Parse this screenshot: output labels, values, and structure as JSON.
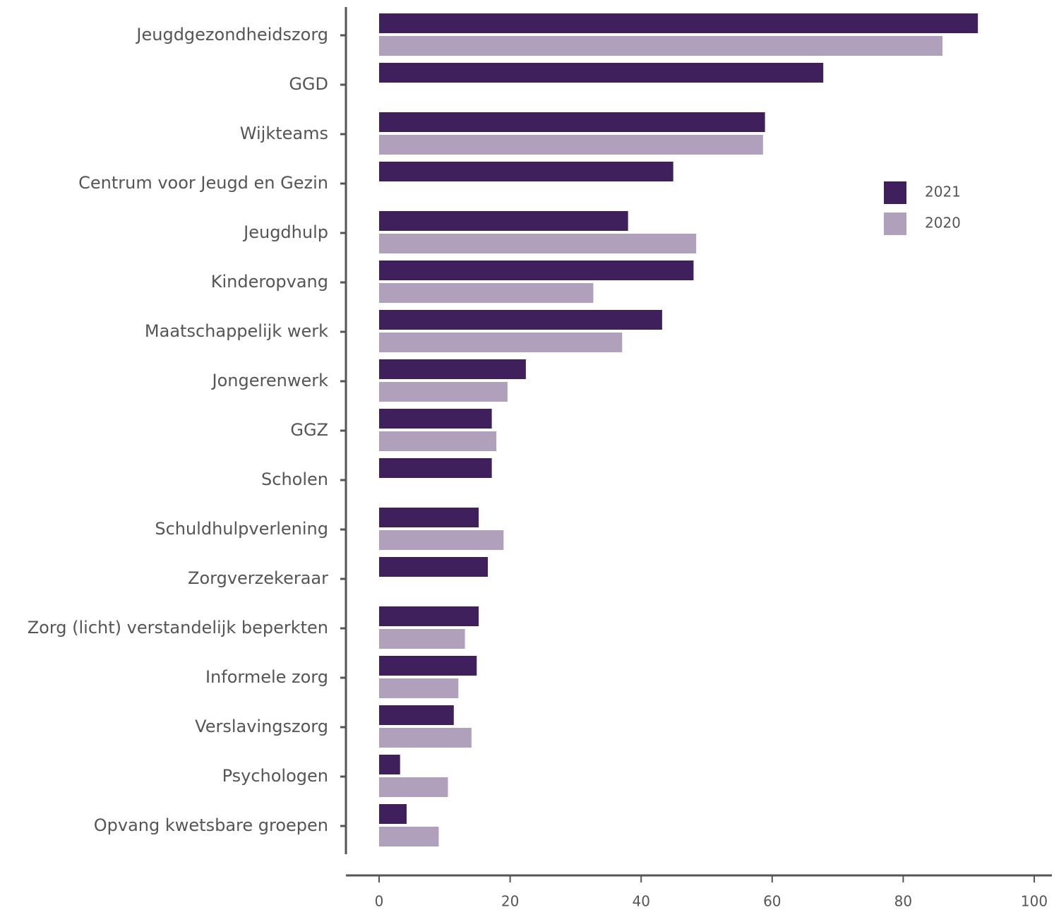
{
  "chart_data": {
    "type": "hbar",
    "categories": [
      "Jeugdgezondheidszorg",
      "GGD",
      "Wijkteams",
      "Centrum voor Jeugd en Gezin",
      "Jeugdhulp",
      "Kinderopvang",
      "Maatschappelijk werk",
      "Jongerenwerk",
      "GGZ",
      "Scholen",
      "Schuldhulpverlening",
      "Zorgverzekeraar",
      "Zorg (licht) verstandelijk beperkten",
      "Informele zorg",
      "Verslavingszorg",
      "Psychologen",
      "Opvang kwetsbare groepen"
    ],
    "series": [
      {
        "name": "2021",
        "color": "#3f1f5c",
        "values": [
          91.4,
          67.8,
          58.9,
          44.9,
          38.0,
          48.0,
          43.2,
          22.4,
          17.2,
          17.2,
          15.2,
          16.6,
          15.2,
          14.9,
          11.4,
          3.2,
          4.2
        ]
      },
      {
        "name": "2020",
        "color": "#b0a0bc",
        "values": [
          86.0,
          null,
          58.6,
          null,
          48.4,
          32.7,
          37.1,
          19.6,
          17.9,
          null,
          19.0,
          null,
          13.1,
          12.1,
          14.1,
          10.5,
          9.1
        ]
      }
    ],
    "xlim": [
      0,
      100
    ],
    "xticks": [
      0,
      20,
      40,
      60,
      80,
      100
    ]
  }
}
